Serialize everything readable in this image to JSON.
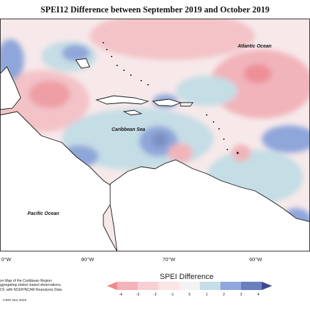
{
  "title": "SPEI12 Difference between September 2019 and October 2019",
  "ocean_labels": {
    "atlantic": "Atlantic Ocean",
    "caribbean": "Caribbean Sea",
    "pacific": "Pacific Ocean"
  },
  "longitude_labels": [
    "0°W",
    "80°W",
    "70°W",
    "60°W"
  ],
  "legend": {
    "title": "SPEI Difference",
    "ticks": [
      "-4",
      "-3",
      "-2",
      "-1",
      "0",
      "1",
      "2",
      "3",
      "4"
    ],
    "colors": [
      "#f08a92",
      "#f4b3b8",
      "#f8d0d3",
      "#fbe4e6",
      "#f3f3f3",
      "#c6dfe6",
      "#8fa7dc",
      "#6a7fbc",
      "#3f4a8e"
    ]
  },
  "caption_lines": [
    "on Map of the Caribbean Region",
    "ggregating station based observations,",
    "CF, with NCEP/NCAR Reanalysis Data."
  ],
  "credit": "CIMH Nov 2019"
}
